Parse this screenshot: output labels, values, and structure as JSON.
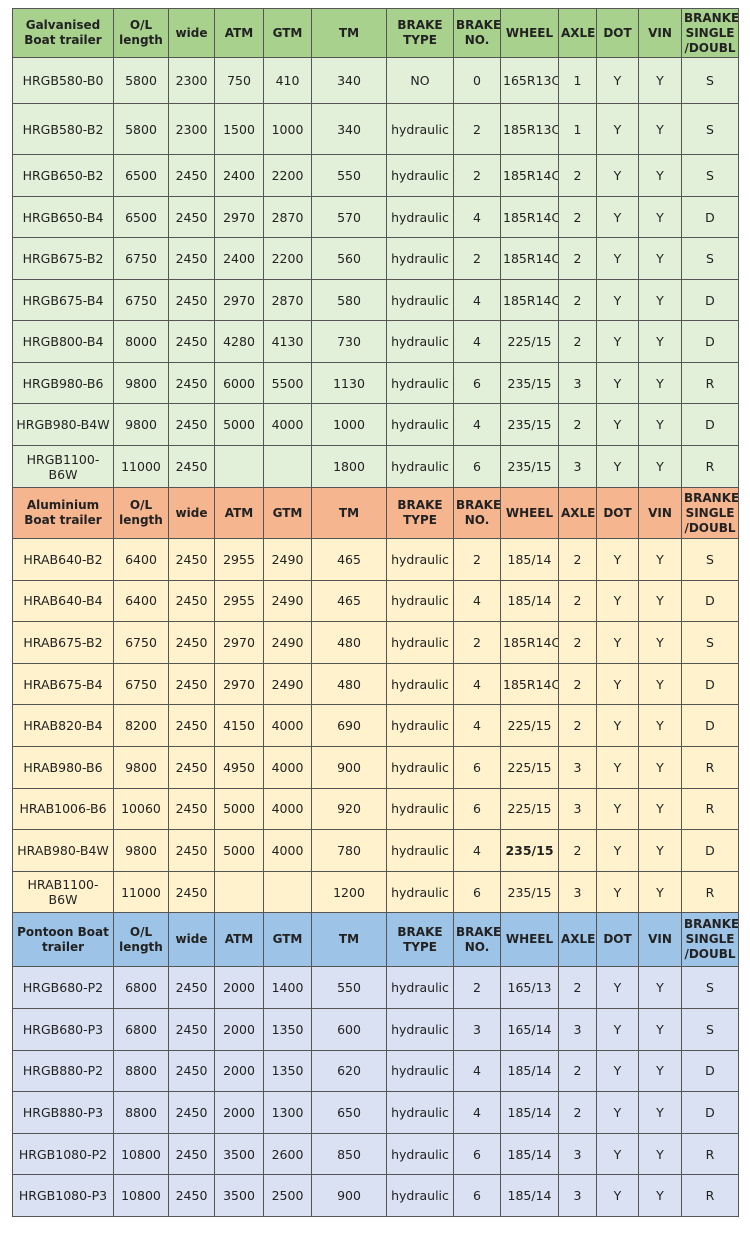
{
  "sections": [
    {
      "header": [
        "Galvanised Boat trailer",
        "O/L length",
        "wide",
        "ATM",
        "GTM",
        "TM",
        "BRAKE TYPE",
        "BRAKE NO.",
        "WHEEL",
        "AXLE",
        "DOT",
        "VIN",
        "BRANKE SINGLE /DOUBL"
      ],
      "rows": [
        [
          "HRGB580-B0",
          "5800",
          "2300",
          "750",
          "410",
          "340",
          "NO",
          "0",
          "165R13C",
          "1",
          "Y",
          "Y",
          "S"
        ],
        [
          "HRGB580-B2",
          "5800",
          "2300",
          "1500",
          "1000",
          "340",
          "hydraulic",
          "2",
          "185R13C",
          "1",
          "Y",
          "Y",
          "S"
        ],
        [
          "HRGB650-B2",
          "6500",
          "2450",
          "2400",
          "2200",
          "550",
          "hydraulic",
          "2",
          "185R14C",
          "2",
          "Y",
          "Y",
          "S"
        ],
        [
          "HRGB650-B4",
          "6500",
          "2450",
          "2970",
          "2870",
          "570",
          "hydraulic",
          "4",
          "185R14C",
          "2",
          "Y",
          "Y",
          "D"
        ],
        [
          "HRGB675-B2",
          "6750",
          "2450",
          "2400",
          "2200",
          "560",
          "hydraulic",
          "2",
          "185R14C",
          "2",
          "Y",
          "Y",
          "S"
        ],
        [
          "HRGB675-B4",
          "6750",
          "2450",
          "2970",
          "2870",
          "580",
          "hydraulic",
          "4",
          "185R14C",
          "2",
          "Y",
          "Y",
          "D"
        ],
        [
          "HRGB800-B4",
          "8000",
          "2450",
          "4280",
          "4130",
          "730",
          "hydraulic",
          "4",
          "225/15",
          "2",
          "Y",
          "Y",
          "D"
        ],
        [
          "HRGB980-B6",
          "9800",
          "2450",
          "6000",
          "5500",
          "1130",
          "hydraulic",
          "6",
          "235/15",
          "3",
          "Y",
          "Y",
          "R"
        ],
        [
          "HRGB980-B4W",
          "9800",
          "2450",
          "5000",
          "4000",
          "1000",
          "hydraulic",
          "4",
          "235/15",
          "2",
          "Y",
          "Y",
          "D"
        ],
        [
          "HRGB1100-B6W",
          "11000",
          "2450",
          null,
          null,
          "1800",
          "hydraulic",
          "6",
          "235/15",
          "3",
          "Y",
          "Y",
          "R"
        ]
      ]
    },
    {
      "header": [
        "Aluminium Boat trailer",
        "O/L length",
        "wide",
        "ATM",
        "GTM",
        "TM",
        "BRAKE TYPE",
        "BRAKE NO.",
        "WHEEL",
        "AXLE",
        "DOT",
        "VIN",
        "BRANKE SINGLE /DOUBL"
      ],
      "rows": [
        [
          "HRAB640-B2",
          "6400",
          "2450",
          "2955",
          "2490",
          "465",
          "hydraulic",
          "2",
          "185/14",
          "2",
          "Y",
          "Y",
          "S"
        ],
        [
          "HRAB640-B4",
          "6400",
          "2450",
          "2955",
          "2490",
          "465",
          "hydraulic",
          "4",
          "185/14",
          "2",
          "Y",
          "Y",
          "D"
        ],
        [
          "HRAB675-B2",
          "6750",
          "2450",
          "2970",
          "2490",
          "480",
          "hydraulic",
          "2",
          "185R14C",
          "2",
          "Y",
          "Y",
          "S"
        ],
        [
          "HRAB675-B4",
          "6750",
          "2450",
          "2970",
          "2490",
          "480",
          "hydraulic",
          "4",
          "185R14C",
          "2",
          "Y",
          "Y",
          "D"
        ],
        [
          "HRAB820-B4",
          "8200",
          "2450",
          "4150",
          "4000",
          "690",
          "hydraulic",
          "4",
          "225/15",
          "2",
          "Y",
          "Y",
          "D"
        ],
        [
          "HRAB980-B6",
          "9800",
          "2450",
          "4950",
          "4000",
          "900",
          "hydraulic",
          "6",
          "225/15",
          "3",
          "Y",
          "Y",
          "R"
        ],
        [
          "HRAB1006-B6",
          "10060",
          "2450",
          "5000",
          "4000",
          "920",
          "hydraulic",
          "6",
          "225/15",
          "3",
          "Y",
          "Y",
          "R"
        ],
        [
          "HRAB980-B4W",
          "9800",
          "2450",
          "5000",
          "4000",
          "780",
          "hydraulic",
          "4",
          "235/15",
          "2",
          "Y",
          "Y",
          "D"
        ],
        [
          "HRAB1100-B6W",
          "11000",
          "2450",
          null,
          null,
          "1200",
          "hydraulic",
          "6",
          "235/15",
          "3",
          "Y",
          "Y",
          "R"
        ]
      ]
    },
    {
      "header": [
        "Pontoon Boat trailer",
        "O/L length",
        "wide",
        "ATM",
        "GTM",
        "TM",
        "BRAKE TYPE",
        "BRAKE NO.",
        "WHEEL",
        "AXLE",
        "DOT",
        "VIN",
        "BRANKE SINGLE /DOUBL"
      ],
      "rows": [
        [
          "HRGB680-P2",
          "6800",
          "2450",
          "2000",
          "1400",
          "550",
          "hydraulic",
          "2",
          "165/13",
          "2",
          "Y",
          "Y",
          "S"
        ],
        [
          "HRGB680-P3",
          "6800",
          "2450",
          "2000",
          "1350",
          "600",
          "hydraulic",
          "3",
          "165/14",
          "3",
          "Y",
          "Y",
          "S"
        ],
        [
          "HRGB880-P2",
          "8800",
          "2450",
          "2000",
          "1350",
          "620",
          "hydraulic",
          "4",
          "185/14",
          "2",
          "Y",
          "Y",
          "D"
        ],
        [
          "HRGB880-P3",
          "8800",
          "2450",
          "2000",
          "1300",
          "650",
          "hydraulic",
          "4",
          "185/14",
          "2",
          "Y",
          "Y",
          "D"
        ],
        [
          "HRGB1080-P2",
          "10800",
          "2450",
          "3500",
          "2600",
          "850",
          "hydraulic",
          "6",
          "185/14",
          "3",
          "Y",
          "Y",
          "R"
        ],
        [
          "HRGB1080-P3",
          "10800",
          "2450",
          "3500",
          "2500",
          "900",
          "hydraulic",
          "6",
          "185/14",
          "3",
          "Y",
          "Y",
          "R"
        ]
      ]
    }
  ]
}
